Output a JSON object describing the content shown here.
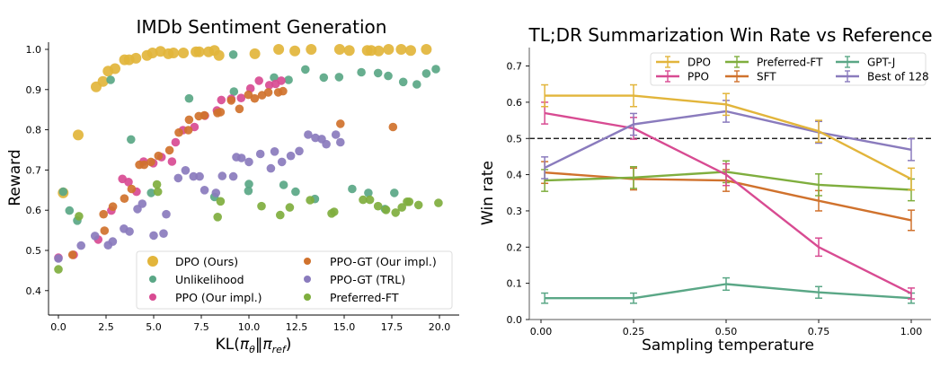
{
  "chart_data": [
    {
      "type": "scatter",
      "title": "IMDb Sentiment Generation",
      "xlabel": "KL(πθ‖πref)",
      "ylabel": "Reward",
      "xlim": [
        -0.7,
        21.0
      ],
      "ylim": [
        0.34,
        1.02
      ],
      "xticks": [
        0.0,
        2.5,
        5.0,
        7.5,
        10.0,
        12.5,
        15.0,
        17.5,
        20.0
      ],
      "xtick_labels": [
        "0.0",
        "2.5",
        "5.0",
        "7.5",
        "10.0",
        "12.5",
        "15.0",
        "17.5",
        "20.0"
      ],
      "yticks": [
        0.4,
        0.5,
        0.6,
        0.7,
        0.8,
        0.9,
        1.0
      ],
      "ytick_labels": [
        "0.4",
        "0.5",
        "0.6",
        "0.7",
        "0.8",
        "0.9",
        "1.0"
      ],
      "grid": false,
      "legend_position": "lower-right",
      "series": [
        {
          "name": "DPO (Ours)",
          "color": "#e2b53b",
          "size": "large",
          "points": [
            [
              1.04,
              0.787
            ],
            [
              1.98,
              0.907
            ],
            [
              2.34,
              0.92
            ],
            [
              2.61,
              0.946
            ],
            [
              2.97,
              0.952
            ],
            [
              3.47,
              0.974
            ],
            [
              3.71,
              0.974
            ],
            [
              4.07,
              0.978
            ],
            [
              4.65,
              0.985
            ],
            [
              4.94,
              0.991
            ],
            [
              5.36,
              0.995
            ],
            [
              5.77,
              0.989
            ],
            [
              6.04,
              0.991
            ],
            [
              6.56,
              0.991
            ],
            [
              7.22,
              0.994
            ],
            [
              7.39,
              0.994
            ],
            [
              7.88,
              0.994
            ],
            [
              8.19,
              0.997
            ],
            [
              8.43,
              0.985
            ],
            [
              10.31,
              0.989
            ],
            [
              11.56,
              1.0
            ],
            [
              12.41,
              0.996
            ],
            [
              13.27,
              1.0
            ],
            [
              14.76,
              1.0
            ],
            [
              15.27,
              0.997
            ],
            [
              16.21,
              0.997
            ],
            [
              16.42,
              0.997
            ],
            [
              16.81,
              0.996
            ],
            [
              17.33,
              1.0
            ],
            [
              17.99,
              1.0
            ],
            [
              18.49,
              0.997
            ],
            [
              19.31,
              1.0
            ],
            [
              0.25,
              0.643
            ]
          ]
        },
        {
          "name": "Unlikelihood",
          "color": "#5aa786",
          "size": "small",
          "points": [
            [
              0.25,
              0.646
            ],
            [
              0.58,
              0.599
            ],
            [
              0.99,
              0.574
            ],
            [
              2.74,
              0.924
            ],
            [
              3.81,
              0.776
            ],
            [
              4.87,
              0.643
            ],
            [
              6.86,
              0.878
            ],
            [
              8.19,
              0.633
            ],
            [
              9.18,
              0.987
            ],
            [
              9.21,
              0.895
            ],
            [
              9.97,
              0.648
            ],
            [
              10.0,
              0.665
            ],
            [
              11.32,
              0.93
            ],
            [
              11.82,
              0.663
            ],
            [
              12.08,
              0.924
            ],
            [
              12.45,
              0.646
            ],
            [
              12.96,
              0.95
            ],
            [
              13.46,
              0.628
            ],
            [
              13.93,
              0.93
            ],
            [
              14.73,
              0.931
            ],
            [
              15.42,
              0.653
            ],
            [
              15.9,
              0.943
            ],
            [
              16.27,
              0.643
            ],
            [
              16.78,
              0.941
            ],
            [
              17.31,
              0.934
            ],
            [
              17.14,
              0.603
            ],
            [
              17.63,
              0.643
            ],
            [
              18.1,
              0.919
            ],
            [
              18.81,
              0.913
            ],
            [
              19.31,
              0.94
            ],
            [
              19.81,
              0.951
            ]
          ]
        },
        {
          "name": "PPO (Our impl.)",
          "color": "#d84b92",
          "size": "small",
          "points": [
            [
              0.0,
              0.482
            ],
            [
              0.8,
              0.489
            ],
            [
              2.09,
              0.527
            ],
            [
              2.78,
              0.599
            ],
            [
              3.36,
              0.678
            ],
            [
              3.68,
              0.67
            ],
            [
              4.1,
              0.646
            ],
            [
              4.47,
              0.721
            ],
            [
              4.98,
              0.717
            ],
            [
              5.41,
              0.732
            ],
            [
              5.96,
              0.721
            ],
            [
              6.15,
              0.769
            ],
            [
              6.54,
              0.799
            ],
            [
              7.14,
              0.807
            ],
            [
              7.69,
              0.835
            ],
            [
              8.32,
              0.848
            ],
            [
              8.55,
              0.874
            ],
            [
              9.07,
              0.877
            ],
            [
              9.59,
              0.879
            ],
            [
              10.08,
              0.903
            ],
            [
              10.53,
              0.922
            ],
            [
              11.07,
              0.911
            ],
            [
              11.4,
              0.914
            ],
            [
              11.7,
              0.922
            ]
          ]
        },
        {
          "name": "PPO-GT (Our impl.)",
          "color": "#d0722d",
          "size": "small",
          "points": [
            [
              0.74,
              0.489
            ],
            [
              2.37,
              0.59
            ],
            [
              2.42,
              0.549
            ],
            [
              2.86,
              0.609
            ],
            [
              3.46,
              0.629
            ],
            [
              3.84,
              0.653
            ],
            [
              4.25,
              0.713
            ],
            [
              4.5,
              0.713
            ],
            [
              4.86,
              0.72
            ],
            [
              5.25,
              0.735
            ],
            [
              5.83,
              0.749
            ],
            [
              6.32,
              0.793
            ],
            [
              6.82,
              0.799
            ],
            [
              6.86,
              0.825
            ],
            [
              7.37,
              0.834
            ],
            [
              7.66,
              0.836
            ],
            [
              8.35,
              0.842
            ],
            [
              8.51,
              0.844
            ],
            [
              9.07,
              0.873
            ],
            [
              9.5,
              0.852
            ],
            [
              9.97,
              0.887
            ],
            [
              10.3,
              0.878
            ],
            [
              10.69,
              0.886
            ],
            [
              11.02,
              0.893
            ],
            [
              11.54,
              0.893
            ],
            [
              11.79,
              0.896
            ],
            [
              14.8,
              0.815
            ],
            [
              17.56,
              0.807
            ]
          ]
        },
        {
          "name": "PPO-GT (TRL)",
          "color": "#8a7bbd",
          "size": "small",
          "points": [
            [
              0.0,
              0.48
            ],
            [
              1.19,
              0.512
            ],
            [
              1.92,
              0.536
            ],
            [
              2.61,
              0.513
            ],
            [
              2.85,
              0.522
            ],
            [
              3.44,
              0.554
            ],
            [
              3.73,
              0.547
            ],
            [
              4.15,
              0.603
            ],
            [
              4.4,
              0.616
            ],
            [
              5.0,
              0.537
            ],
            [
              5.52,
              0.542
            ],
            [
              5.66,
              0.59
            ],
            [
              6.29,
              0.68
            ],
            [
              6.67,
              0.699
            ],
            [
              7.09,
              0.684
            ],
            [
              7.41,
              0.684
            ],
            [
              7.67,
              0.65
            ],
            [
              8.27,
              0.643
            ],
            [
              8.6,
              0.685
            ],
            [
              9.18,
              0.684
            ],
            [
              9.34,
              0.732
            ],
            [
              9.61,
              0.73
            ],
            [
              10.0,
              0.72
            ],
            [
              10.6,
              0.74
            ],
            [
              11.15,
              0.704
            ],
            [
              11.35,
              0.746
            ],
            [
              11.73,
              0.72
            ],
            [
              12.2,
              0.735
            ],
            [
              12.64,
              0.747
            ],
            [
              13.11,
              0.788
            ],
            [
              13.49,
              0.78
            ],
            [
              13.82,
              0.777
            ],
            [
              14.06,
              0.764
            ],
            [
              14.56,
              0.788
            ],
            [
              14.8,
              0.769
            ]
          ]
        },
        {
          "name": "Preferred-FT",
          "color": "#7fae3e",
          "size": "small",
          "points": [
            [
              0.0,
              0.453
            ],
            [
              1.08,
              0.585
            ],
            [
              5.17,
              0.664
            ],
            [
              5.22,
              0.646
            ],
            [
              8.51,
              0.622
            ],
            [
              8.36,
              0.583
            ],
            [
              10.66,
              0.61
            ],
            [
              11.64,
              0.588
            ],
            [
              12.14,
              0.607
            ],
            [
              13.21,
              0.625
            ],
            [
              14.34,
              0.592
            ],
            [
              14.47,
              0.596
            ],
            [
              15.99,
              0.626
            ],
            [
              16.35,
              0.626
            ],
            [
              16.78,
              0.61
            ],
            [
              17.2,
              0.601
            ],
            [
              17.7,
              0.594
            ],
            [
              18.03,
              0.607
            ],
            [
              18.3,
              0.621
            ],
            [
              18.41,
              0.621
            ],
            [
              18.9,
              0.613
            ],
            [
              19.95,
              0.618
            ]
          ]
        }
      ]
    },
    {
      "type": "line",
      "title": "TL;DR Summarization Win Rate vs Reference",
      "xlabel": "Sampling temperature",
      "ylabel": "Win rate",
      "x": [
        0.01,
        0.25,
        0.5,
        0.75,
        1.0
      ],
      "xlim": [
        -0.03,
        1.05
      ],
      "ylim": [
        0.0,
        0.75
      ],
      "xticks": [
        0.0,
        0.25,
        0.5,
        0.75,
        1.0
      ],
      "xtick_labels": [
        "0.00",
        "0.25",
        "0.50",
        "0.75",
        "1.00"
      ],
      "yticks": [
        0.0,
        0.1,
        0.2,
        0.3,
        0.4,
        0.5,
        0.6,
        0.7
      ],
      "ytick_labels": [
        "0.0",
        "0.1",
        "0.2",
        "0.3",
        "0.4",
        "0.5",
        "0.6",
        "0.7"
      ],
      "reference_line": 0.5,
      "grid": false,
      "legend_position": "top-right",
      "series": [
        {
          "name": "DPO",
          "color": "#e2b53b",
          "values": [
            0.618,
            0.618,
            0.594,
            0.52,
            0.388
          ],
          "err": [
            0.03,
            0.03,
            0.03,
            0.03,
            0.03
          ]
        },
        {
          "name": "PPO",
          "color": "#d84b92",
          "values": [
            0.57,
            0.528,
            0.4,
            0.2,
            0.072
          ],
          "err": [
            0.03,
            0.03,
            0.03,
            0.025,
            0.015
          ]
        },
        {
          "name": "Preferred-FT",
          "color": "#7fae3e",
          "values": [
            0.384,
            0.392,
            0.408,
            0.372,
            0.358
          ],
          "err": [
            0.03,
            0.03,
            0.03,
            0.03,
            0.03
          ]
        },
        {
          "name": "SFT",
          "color": "#d0722d",
          "values": [
            0.406,
            0.388,
            0.384,
            0.328,
            0.274
          ],
          "err": [
            0.03,
            0.03,
            0.03,
            0.028,
            0.028
          ]
        },
        {
          "name": "GPT-J",
          "color": "#5aa786",
          "values": [
            0.059,
            0.059,
            0.098,
            0.075,
            0.059
          ],
          "err": [
            0.014,
            0.014,
            0.017,
            0.016,
            0.014
          ]
        },
        {
          "name": "Best of 128",
          "color": "#8a7bbd",
          "values": [
            0.419,
            0.539,
            0.575,
            0.517,
            0.469
          ],
          "err": [
            0.03,
            0.03,
            0.03,
            0.03,
            0.03
          ]
        }
      ]
    }
  ]
}
